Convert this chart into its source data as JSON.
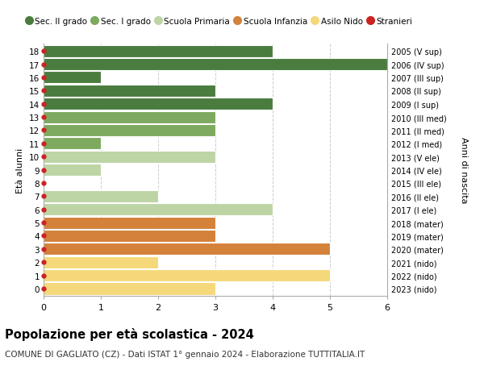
{
  "ages": [
    18,
    17,
    16,
    15,
    14,
    13,
    12,
    11,
    10,
    9,
    8,
    7,
    6,
    5,
    4,
    3,
    2,
    1,
    0
  ],
  "right_labels": [
    "2005 (V sup)",
    "2006 (IV sup)",
    "2007 (III sup)",
    "2008 (II sup)",
    "2009 (I sup)",
    "2010 (III med)",
    "2011 (II med)",
    "2012 (I med)",
    "2013 (V ele)",
    "2014 (IV ele)",
    "2015 (III ele)",
    "2016 (II ele)",
    "2017 (I ele)",
    "2018 (mater)",
    "2019 (mater)",
    "2020 (mater)",
    "2021 (nido)",
    "2022 (nido)",
    "2023 (nido)"
  ],
  "bar_values": [
    4,
    6,
    1,
    3,
    4,
    3,
    3,
    1,
    3,
    1,
    0,
    2,
    4,
    3,
    3,
    5,
    2,
    5,
    3
  ],
  "bar_colors": [
    "#4a7c3f",
    "#4a7c3f",
    "#4a7c3f",
    "#4a7c3f",
    "#4a7c3f",
    "#7daa5e",
    "#7daa5e",
    "#7daa5e",
    "#bdd4a5",
    "#bdd4a5",
    "#bdd4a5",
    "#bdd4a5",
    "#bdd4a5",
    "#d4813a",
    "#d4813a",
    "#d4813a",
    "#f5d87a",
    "#f5d87a",
    "#f5d87a"
  ],
  "dot_color": "#cc2222",
  "legend_labels": [
    "Sec. II grado",
    "Sec. I grado",
    "Scuola Primaria",
    "Scuola Infanzia",
    "Asilo Nido",
    "Stranieri"
  ],
  "legend_colors": [
    "#4a7c3f",
    "#7daa5e",
    "#bdd4a5",
    "#d4813a",
    "#f5d87a",
    "#cc2222"
  ],
  "title": "Popolazione per età scolastica - 2024",
  "subtitle": "COMUNE DI GAGLIATO (CZ) - Dati ISTAT 1° gennaio 2024 - Elaborazione TUTTITALIA.IT",
  "ylabel_left": "Età alunni",
  "right_ylabel": "Anni di nascita",
  "xlim": [
    0,
    6
  ],
  "xticks": [
    0,
    1,
    2,
    3,
    4,
    5,
    6
  ],
  "grid_color": "#cccccc",
  "bar_height": 0.92
}
